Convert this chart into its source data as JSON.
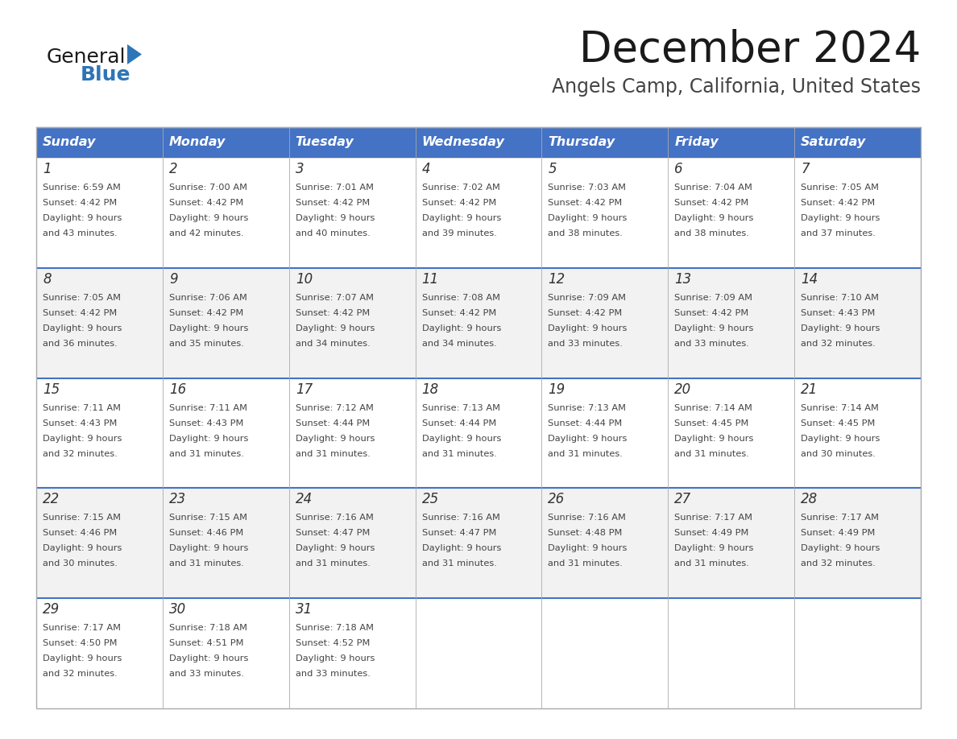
{
  "title": "December 2024",
  "subtitle": "Angels Camp, California, United States",
  "header_color": "#4472C4",
  "header_text_color": "#FFFFFF",
  "days_of_week": [
    "Sunday",
    "Monday",
    "Tuesday",
    "Wednesday",
    "Thursday",
    "Friday",
    "Saturday"
  ],
  "row_bg_colors": [
    "#FFFFFF",
    "#F2F2F2"
  ],
  "title_color": "#1a1a1a",
  "subtitle_color": "#444444",
  "day_num_color": "#333333",
  "cell_text_color": "#444444",
  "separator_color": "#4472C4",
  "border_color": "#AAAAAA",
  "logo_general_color": "#1a1a1a",
  "logo_blue_color": "#2E75B6",
  "logo_triangle_color": "#2E75B6",
  "calendar": [
    [
      {
        "day": 1,
        "sunrise": "6:59 AM",
        "sunset": "4:42 PM",
        "daylight_suffix": "43 minutes."
      },
      {
        "day": 2,
        "sunrise": "7:00 AM",
        "sunset": "4:42 PM",
        "daylight_suffix": "42 minutes."
      },
      {
        "day": 3,
        "sunrise": "7:01 AM",
        "sunset": "4:42 PM",
        "daylight_suffix": "40 minutes."
      },
      {
        "day": 4,
        "sunrise": "7:02 AM",
        "sunset": "4:42 PM",
        "daylight_suffix": "39 minutes."
      },
      {
        "day": 5,
        "sunrise": "7:03 AM",
        "sunset": "4:42 PM",
        "daylight_suffix": "38 minutes."
      },
      {
        "day": 6,
        "sunrise": "7:04 AM",
        "sunset": "4:42 PM",
        "daylight_suffix": "38 minutes."
      },
      {
        "day": 7,
        "sunrise": "7:05 AM",
        "sunset": "4:42 PM",
        "daylight_suffix": "37 minutes."
      }
    ],
    [
      {
        "day": 8,
        "sunrise": "7:05 AM",
        "sunset": "4:42 PM",
        "daylight_suffix": "36 minutes."
      },
      {
        "day": 9,
        "sunrise": "7:06 AM",
        "sunset": "4:42 PM",
        "daylight_suffix": "35 minutes."
      },
      {
        "day": 10,
        "sunrise": "7:07 AM",
        "sunset": "4:42 PM",
        "daylight_suffix": "34 minutes."
      },
      {
        "day": 11,
        "sunrise": "7:08 AM",
        "sunset": "4:42 PM",
        "daylight_suffix": "34 minutes."
      },
      {
        "day": 12,
        "sunrise": "7:09 AM",
        "sunset": "4:42 PM",
        "daylight_suffix": "33 minutes."
      },
      {
        "day": 13,
        "sunrise": "7:09 AM",
        "sunset": "4:42 PM",
        "daylight_suffix": "33 minutes."
      },
      {
        "day": 14,
        "sunrise": "7:10 AM",
        "sunset": "4:43 PM",
        "daylight_suffix": "32 minutes."
      }
    ],
    [
      {
        "day": 15,
        "sunrise": "7:11 AM",
        "sunset": "4:43 PM",
        "daylight_suffix": "32 minutes."
      },
      {
        "day": 16,
        "sunrise": "7:11 AM",
        "sunset": "4:43 PM",
        "daylight_suffix": "31 minutes."
      },
      {
        "day": 17,
        "sunrise": "7:12 AM",
        "sunset": "4:44 PM",
        "daylight_suffix": "31 minutes."
      },
      {
        "day": 18,
        "sunrise": "7:13 AM",
        "sunset": "4:44 PM",
        "daylight_suffix": "31 minutes."
      },
      {
        "day": 19,
        "sunrise": "7:13 AM",
        "sunset": "4:44 PM",
        "daylight_suffix": "31 minutes."
      },
      {
        "day": 20,
        "sunrise": "7:14 AM",
        "sunset": "4:45 PM",
        "daylight_suffix": "31 minutes."
      },
      {
        "day": 21,
        "sunrise": "7:14 AM",
        "sunset": "4:45 PM",
        "daylight_suffix": "30 minutes."
      }
    ],
    [
      {
        "day": 22,
        "sunrise": "7:15 AM",
        "sunset": "4:46 PM",
        "daylight_suffix": "30 minutes."
      },
      {
        "day": 23,
        "sunrise": "7:15 AM",
        "sunset": "4:46 PM",
        "daylight_suffix": "31 minutes."
      },
      {
        "day": 24,
        "sunrise": "7:16 AM",
        "sunset": "4:47 PM",
        "daylight_suffix": "31 minutes."
      },
      {
        "day": 25,
        "sunrise": "7:16 AM",
        "sunset": "4:47 PM",
        "daylight_suffix": "31 minutes."
      },
      {
        "day": 26,
        "sunrise": "7:16 AM",
        "sunset": "4:48 PM",
        "daylight_suffix": "31 minutes."
      },
      {
        "day": 27,
        "sunrise": "7:17 AM",
        "sunset": "4:49 PM",
        "daylight_suffix": "31 minutes."
      },
      {
        "day": 28,
        "sunrise": "7:17 AM",
        "sunset": "4:49 PM",
        "daylight_suffix": "32 minutes."
      }
    ],
    [
      {
        "day": 29,
        "sunrise": "7:17 AM",
        "sunset": "4:50 PM",
        "daylight_suffix": "32 minutes."
      },
      {
        "day": 30,
        "sunrise": "7:18 AM",
        "sunset": "4:51 PM",
        "daylight_suffix": "33 minutes."
      },
      {
        "day": 31,
        "sunrise": "7:18 AM",
        "sunset": "4:52 PM",
        "daylight_suffix": "33 minutes."
      },
      null,
      null,
      null,
      null
    ]
  ]
}
